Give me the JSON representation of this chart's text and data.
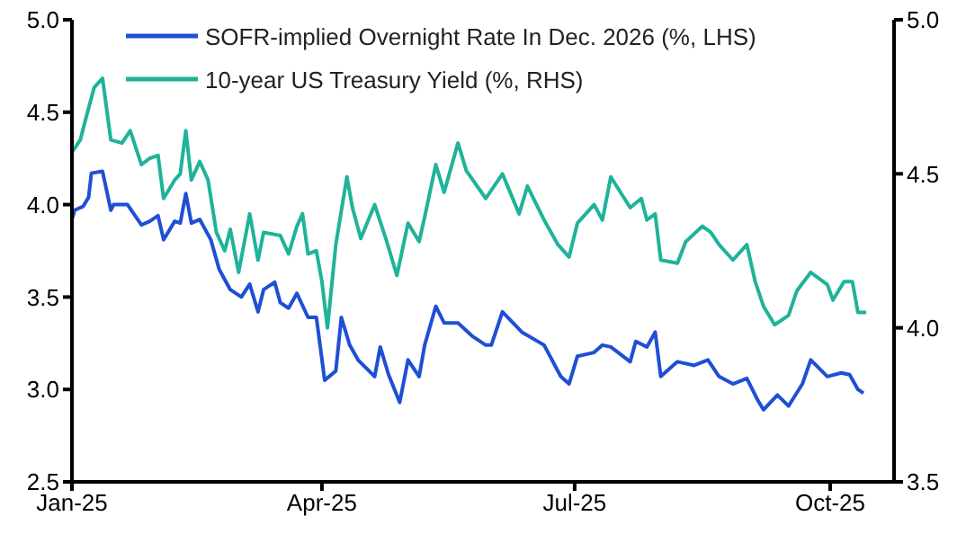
{
  "chart_data": {
    "type": "line",
    "legend": "top left",
    "grid": false,
    "marker": "none",
    "line_style": "solid",
    "xlim": [
      "2025-01-01",
      "2025-10-24"
    ],
    "xticks": [
      {
        "value": "2025-01-01",
        "label": "Jan-25"
      },
      {
        "value": "2025-04-01",
        "label": "Apr-25"
      },
      {
        "value": "2025-07-01",
        "label": "Jul-25"
      },
      {
        "value": "2025-10-01",
        "label": "Oct-25"
      }
    ],
    "ylim": [
      2.5,
      5.0
    ],
    "yticks": [
      {
        "value": 2.5,
        "label": "2.5"
      },
      {
        "value": 3.0,
        "label": "3.0"
      },
      {
        "value": 3.5,
        "label": "3.5"
      },
      {
        "value": 4.0,
        "label": "4.0"
      },
      {
        "value": 4.5,
        "label": "4.5"
      },
      {
        "value": 5.0,
        "label": "5.0"
      }
    ],
    "y2lim": [
      3.5,
      5.0
    ],
    "y2ticks": [
      {
        "value": 3.5,
        "label": "3.5"
      },
      {
        "value": 4.0,
        "label": "4.0"
      },
      {
        "value": 4.5,
        "label": "4.5"
      },
      {
        "value": 5.0,
        "label": "5.0"
      }
    ],
    "series": [
      {
        "name": "SOFR-implied Overnight Rate In Dec. 2026 (%, LHS)",
        "color": "#1f4fd4",
        "axis": "y",
        "x": [
          "2025-01-01",
          "2025-01-02",
          "2025-01-05",
          "2025-01-07",
          "2025-01-08",
          "2025-01-12",
          "2025-01-15",
          "2025-01-16",
          "2025-01-21",
          "2025-01-26",
          "2025-01-29",
          "2025-02-01",
          "2025-02-03",
          "2025-02-07",
          "2025-02-09",
          "2025-02-11",
          "2025-02-13",
          "2025-02-16",
          "2025-02-20",
          "2025-02-23",
          "2025-02-27",
          "2025-03-03",
          "2025-03-06",
          "2025-03-09",
          "2025-03-11",
          "2025-03-15",
          "2025-03-17",
          "2025-03-20",
          "2025-03-23",
          "2025-03-27",
          "2025-03-30",
          "2025-04-02",
          "2025-04-06",
          "2025-04-08",
          "2025-04-11",
          "2025-04-14",
          "2025-04-20",
          "2025-04-22",
          "2025-04-25",
          "2025-04-29",
          "2025-05-02",
          "2025-05-06",
          "2025-05-08",
          "2025-05-12",
          "2025-05-15",
          "2025-05-20",
          "2025-05-25",
          "2025-05-30",
          "2025-06-01",
          "2025-06-05",
          "2025-06-12",
          "2025-06-20",
          "2025-06-26",
          "2025-06-29",
          "2025-07-02",
          "2025-07-08",
          "2025-07-11",
          "2025-07-14",
          "2025-07-21",
          "2025-07-23",
          "2025-07-27",
          "2025-07-30",
          "2025-08-01",
          "2025-08-07",
          "2025-08-13",
          "2025-08-18",
          "2025-08-22",
          "2025-08-27",
          "2025-09-01",
          "2025-09-05",
          "2025-09-07",
          "2025-09-12",
          "2025-09-16",
          "2025-09-21",
          "2025-09-24",
          "2025-09-30",
          "2025-10-05",
          "2025-10-08",
          "2025-10-11",
          "2025-10-13"
        ],
        "values": [
          3.92,
          3.97,
          3.99,
          4.04,
          4.17,
          4.18,
          3.97,
          4.0,
          4.0,
          3.89,
          3.91,
          3.94,
          3.81,
          3.91,
          3.9,
          4.06,
          3.9,
          3.92,
          3.81,
          3.65,
          3.54,
          3.5,
          3.57,
          3.42,
          3.54,
          3.58,
          3.47,
          3.44,
          3.52,
          3.39,
          3.39,
          3.05,
          3.1,
          3.39,
          3.24,
          3.16,
          3.07,
          3.23,
          3.08,
          2.93,
          3.16,
          3.07,
          3.24,
          3.45,
          3.36,
          3.36,
          3.29,
          3.24,
          3.24,
          3.42,
          3.31,
          3.24,
          3.07,
          3.03,
          3.18,
          3.2,
          3.24,
          3.23,
          3.15,
          3.26,
          3.23,
          3.31,
          3.07,
          3.15,
          3.13,
          3.16,
          3.07,
          3.03,
          3.06,
          2.94,
          2.89,
          2.97,
          2.91,
          3.03,
          3.16,
          3.07,
          3.09,
          3.08,
          3.0,
          2.98
        ]
      },
      {
        "name": "10-year US Treasury Yield (%, RHS)",
        "color": "#1fb39a",
        "axis": "y2",
        "x": [
          "2025-01-01",
          "2025-01-04",
          "2025-01-06",
          "2025-01-09",
          "2025-01-12",
          "2025-01-15",
          "2025-01-19",
          "2025-01-22",
          "2025-01-26",
          "2025-01-29",
          "2025-02-01",
          "2025-02-03",
          "2025-02-07",
          "2025-02-09",
          "2025-02-11",
          "2025-02-13",
          "2025-02-16",
          "2025-02-19",
          "2025-02-22",
          "2025-02-25",
          "2025-02-27",
          "2025-03-02",
          "2025-03-06",
          "2025-03-09",
          "2025-03-11",
          "2025-03-17",
          "2025-03-20",
          "2025-03-23",
          "2025-03-25",
          "2025-03-27",
          "2025-03-30",
          "2025-04-01",
          "2025-04-03",
          "2025-04-06",
          "2025-04-10",
          "2025-04-12",
          "2025-04-15",
          "2025-04-20",
          "2025-04-24",
          "2025-04-28",
          "2025-05-02",
          "2025-05-06",
          "2025-05-08",
          "2025-05-12",
          "2025-05-15",
          "2025-05-20",
          "2025-05-23",
          "2025-05-30",
          "2025-06-05",
          "2025-06-11",
          "2025-06-14",
          "2025-06-20",
          "2025-06-25",
          "2025-06-29",
          "2025-07-02",
          "2025-07-08",
          "2025-07-11",
          "2025-07-14",
          "2025-07-21",
          "2025-07-25",
          "2025-07-27",
          "2025-07-30",
          "2025-08-01",
          "2025-08-07",
          "2025-08-10",
          "2025-08-16",
          "2025-08-19",
          "2025-08-22",
          "2025-08-27",
          "2025-09-01",
          "2025-09-04",
          "2025-09-07",
          "2025-09-11",
          "2025-09-16",
          "2025-09-19",
          "2025-09-24",
          "2025-09-30",
          "2025-10-02",
          "2025-10-06",
          "2025-10-09",
          "2025-10-11",
          "2025-10-14"
        ],
        "values": [
          4.57,
          4.61,
          4.68,
          4.78,
          4.81,
          4.61,
          4.6,
          4.64,
          4.53,
          4.55,
          4.56,
          4.42,
          4.48,
          4.5,
          4.64,
          4.48,
          4.54,
          4.48,
          4.31,
          4.25,
          4.32,
          4.18,
          4.37,
          4.22,
          4.31,
          4.3,
          4.24,
          4.33,
          4.37,
          4.24,
          4.25,
          4.15,
          4.0,
          4.27,
          4.49,
          4.39,
          4.29,
          4.4,
          4.29,
          4.17,
          4.34,
          4.28,
          4.36,
          4.53,
          4.44,
          4.6,
          4.51,
          4.42,
          4.5,
          4.37,
          4.46,
          4.35,
          4.27,
          4.23,
          4.34,
          4.4,
          4.35,
          4.49,
          4.39,
          4.42,
          4.35,
          4.37,
          4.22,
          4.21,
          4.28,
          4.33,
          4.31,
          4.27,
          4.22,
          4.27,
          4.15,
          4.07,
          4.01,
          4.04,
          4.12,
          4.18,
          4.14,
          4.09,
          4.15,
          4.15,
          4.05,
          4.05
        ]
      }
    ]
  }
}
